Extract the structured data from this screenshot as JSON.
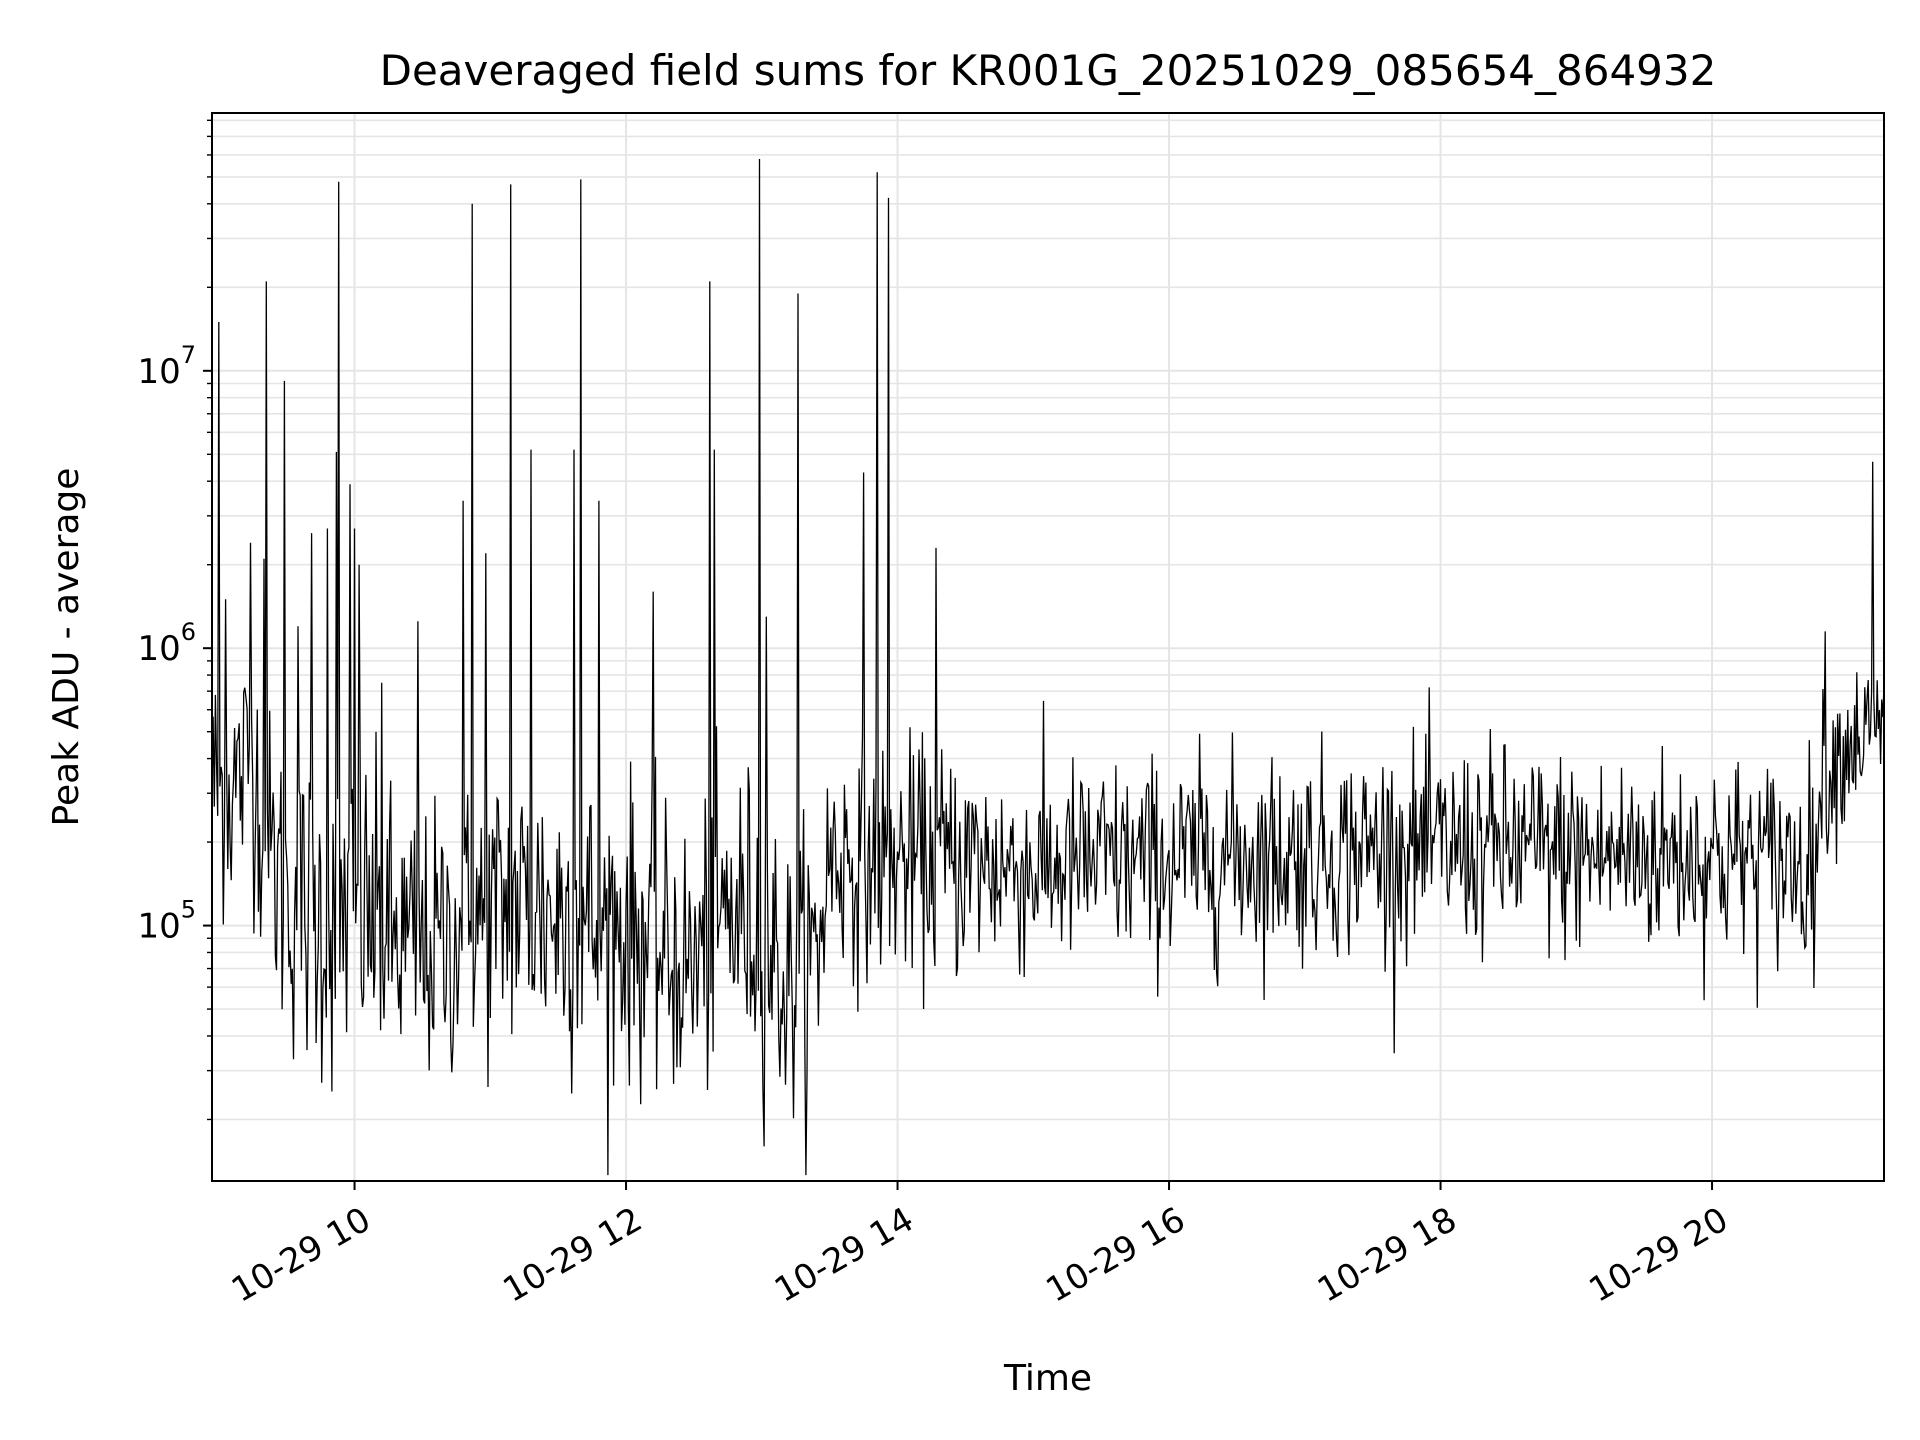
{
  "chart_data": {
    "type": "line",
    "title": "Deaveraged field sums for KR001G_20251029_085654_864932",
    "xlabel": "Time",
    "ylabel": "Peak ADU - average",
    "yscale": "log",
    "grid": true,
    "line_color": "#000000",
    "grid_color": "#e5e5e5",
    "x_range": [
      "2025-10-29T08:57:00",
      "2025-10-29T21:16:00"
    ],
    "ylim": [
      12000,
      85000000
    ],
    "x_ticks": [
      {
        "x": "2025-10-29T10:00:00",
        "label": "10-29 10"
      },
      {
        "x": "2025-10-29T12:00:00",
        "label": "10-29 12"
      },
      {
        "x": "2025-10-29T14:00:00",
        "label": "10-29 14"
      },
      {
        "x": "2025-10-29T16:00:00",
        "label": "10-29 16"
      },
      {
        "x": "2025-10-29T18:00:00",
        "label": "10-29 18"
      },
      {
        "x": "2025-10-29T20:00:00",
        "label": "10-29 20"
      }
    ],
    "y_ticks": [
      {
        "value": 100000,
        "base": "10",
        "exp": "5"
      },
      {
        "value": 1000000,
        "base": "10",
        "exp": "6"
      },
      {
        "value": 10000000,
        "base": "10",
        "exp": "7"
      }
    ],
    "series": [
      {
        "x": [
          "2025-10-29T08:57:00",
          "2025-10-29T09:00:00",
          "2025-10-29T09:05:00",
          "2025-10-29T09:10:00",
          "2025-10-29T09:15:00",
          "2025-10-29T09:20:00",
          "2025-10-29T09:30:00",
          "2025-10-29T09:40:00",
          "2025-10-29T09:50:00",
          "2025-10-29T10:00:00",
          "2025-10-29T10:15:00",
          "2025-10-29T10:30:00",
          "2025-10-29T10:45:00",
          "2025-10-29T11:00:00",
          "2025-10-29T11:15:00",
          "2025-10-29T11:30:00",
          "2025-10-29T11:45:00",
          "2025-10-29T12:00:00",
          "2025-10-29T12:15:00",
          "2025-10-29T12:30:00",
          "2025-10-29T12:45:00",
          "2025-10-29T13:00:00",
          "2025-10-29T13:10:00",
          "2025-10-29T13:20:00",
          "2025-10-29T13:25:00",
          "2025-10-29T13:30:00",
          "2025-10-29T13:45:00",
          "2025-10-29T14:00:00",
          "2025-10-29T14:30:00",
          "2025-10-29T15:00:00",
          "2025-10-29T15:30:00",
          "2025-10-29T16:00:00",
          "2025-10-29T16:30:00",
          "2025-10-29T17:00:00",
          "2025-10-29T17:30:00",
          "2025-10-29T18:00:00",
          "2025-10-29T18:30:00",
          "2025-10-29T19:00:00",
          "2025-10-29T19:30:00",
          "2025-10-29T20:00:00",
          "2025-10-29T20:30:00",
          "2025-10-29T20:45:00",
          "2025-10-29T20:50:00",
          "2025-10-29T21:00:00",
          "2025-10-29T21:10:00",
          "2025-10-29T21:16:00"
        ],
        "y": [
          350000,
          300000,
          300000,
          350000,
          400000,
          200000,
          120000,
          110000,
          100000,
          120000,
          90000,
          80000,
          90000,
          110000,
          120000,
          110000,
          100000,
          100000,
          80000,
          70000,
          110000,
          100000,
          60000,
          70000,
          80000,
          180000,
          170000,
          170000,
          170000,
          160000,
          170000,
          170000,
          180000,
          180000,
          190000,
          190000,
          190000,
          180000,
          180000,
          180000,
          170000,
          170000,
          350000,
          450000,
          500000,
          550000
        ],
        "spread": [
          1.8,
          1.8,
          1.8,
          1.8,
          1.8,
          1.9,
          2.0,
          2.1,
          2.1,
          2.1,
          2.0,
          1.9,
          1.9,
          2.0,
          2.0,
          2.1,
          2.1,
          2.0,
          1.9,
          1.9,
          2.0,
          2.0,
          1.9,
          1.9,
          1.9,
          1.7,
          1.7,
          1.7,
          1.7,
          1.6,
          1.6,
          1.6,
          1.6,
          1.6,
          1.6,
          1.6,
          1.6,
          1.6,
          1.6,
          1.6,
          1.6,
          1.6,
          1.5,
          1.4,
          1.4,
          1.4
        ],
        "spikes": [
          {
            "x": "2025-10-29T09:00:00",
            "y": 15000000
          },
          {
            "x": "2025-10-29T09:03:00",
            "y": 1500000
          },
          {
            "x": "2025-10-29T09:14:00",
            "y": 2400000
          },
          {
            "x": "2025-10-29T09:20:00",
            "y": 2100000
          },
          {
            "x": "2025-10-29T09:21:00",
            "y": 21000000
          },
          {
            "x": "2025-10-29T09:29:00",
            "y": 9200000
          },
          {
            "x": "2025-10-29T09:35:00",
            "y": 1200000
          },
          {
            "x": "2025-10-29T09:41:00",
            "y": 2600000
          },
          {
            "x": "2025-10-29T09:48:00",
            "y": 2700000
          },
          {
            "x": "2025-10-29T09:52:00",
            "y": 5100000
          },
          {
            "x": "2025-10-29T09:53:00",
            "y": 48000000
          },
          {
            "x": "2025-10-29T09:58:00",
            "y": 3900000
          },
          {
            "x": "2025-10-29T10:00:00",
            "y": 2700000
          },
          {
            "x": "2025-10-29T10:02:00",
            "y": 2000000
          },
          {
            "x": "2025-10-29T10:12:00",
            "y": 750000
          },
          {
            "x": "2025-10-29T10:28:00",
            "y": 1250000
          },
          {
            "x": "2025-10-29T10:48:00",
            "y": 3400000
          },
          {
            "x": "2025-10-29T10:52:00",
            "y": 40000000
          },
          {
            "x": "2025-10-29T10:58:00",
            "y": 2200000
          },
          {
            "x": "2025-10-29T11:09:00",
            "y": 47000000
          },
          {
            "x": "2025-10-29T11:18:00",
            "y": 5200000
          },
          {
            "x": "2025-10-29T11:37:00",
            "y": 5200000
          },
          {
            "x": "2025-10-29T11:40:00",
            "y": 49000000
          },
          {
            "x": "2025-10-29T11:48:00",
            "y": 3400000
          },
          {
            "x": "2025-10-29T12:12:00",
            "y": 1600000
          },
          {
            "x": "2025-10-29T12:37:00",
            "y": 21000000
          },
          {
            "x": "2025-10-29T12:39:00",
            "y": 5200000
          },
          {
            "x": "2025-10-29T12:59:00",
            "y": 58000000
          },
          {
            "x": "2025-10-29T13:02:00",
            "y": 1300000
          },
          {
            "x": "2025-10-29T13:16:00",
            "y": 19000000
          },
          {
            "x": "2025-10-29T13:45:00",
            "y": 4300000
          },
          {
            "x": "2025-10-29T13:51:00",
            "y": 52000000
          },
          {
            "x": "2025-10-29T13:56:00",
            "y": 42000000
          },
          {
            "x": "2025-10-29T14:17:00",
            "y": 2300000
          },
          {
            "x": "2025-10-29T20:50:00",
            "y": 1150000
          },
          {
            "x": "2025-10-29T21:11:00",
            "y": 4700000
          }
        ]
      }
    ]
  }
}
